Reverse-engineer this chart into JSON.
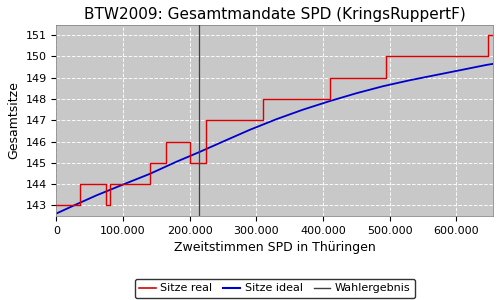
{
  "title": "BTW2009: Gesamtmandate SPD (KringsRuppertF)",
  "xlabel": "Zweitstimmen SPD in Thüringen",
  "ylabel": "Gesamtsitze",
  "plot_bg_color": "#c8c8c8",
  "fig_bg_color": "#ffffff",
  "ylim": [
    142.5,
    151.5
  ],
  "xlim": [
    0,
    655000
  ],
  "yticks": [
    143,
    144,
    145,
    146,
    147,
    148,
    149,
    150,
    151
  ],
  "xticks": [
    0,
    100000,
    200000,
    300000,
    400000,
    500000,
    600000
  ],
  "wahlergebnis_x": 214000,
  "step_x": [
    0,
    35000,
    35000,
    75000,
    75000,
    80000,
    80000,
    140000,
    140000,
    165000,
    165000,
    200000,
    200000,
    225000,
    225000,
    270000,
    270000,
    310000,
    310000,
    360000,
    360000,
    410000,
    410000,
    430000,
    430000,
    460000,
    460000,
    495000,
    495000,
    510000,
    510000,
    590000,
    590000,
    625000,
    625000,
    648000,
    648000,
    655000
  ],
  "step_y": [
    143,
    143,
    144,
    144,
    143,
    143,
    144,
    144,
    145,
    145,
    146,
    146,
    145,
    145,
    147,
    147,
    147,
    147,
    148,
    148,
    148,
    148,
    149,
    149,
    149,
    149,
    149,
    149,
    150,
    150,
    150,
    150,
    150,
    150,
    150,
    150,
    151,
    151
  ],
  "ideal_x": [
    0,
    30000,
    60000,
    100000,
    140000,
    180000,
    214000,
    250000,
    290000,
    330000,
    370000,
    410000,
    450000,
    490000,
    530000,
    570000,
    610000,
    645000,
    655000
  ],
  "ideal_y": [
    142.62,
    143.05,
    143.47,
    143.98,
    144.48,
    145.05,
    145.5,
    146.0,
    146.55,
    147.05,
    147.5,
    147.9,
    148.27,
    148.6,
    148.88,
    149.13,
    149.38,
    149.6,
    149.65
  ],
  "legend_labels": [
    "Sitze real",
    "Sitze ideal",
    "Wahlergebnis"
  ],
  "legend_colors": [
    "#dd0000",
    "#0000cc",
    "#404040"
  ],
  "title_fontsize": 11,
  "axis_fontsize": 9,
  "tick_fontsize": 8,
  "legend_fontsize": 8
}
